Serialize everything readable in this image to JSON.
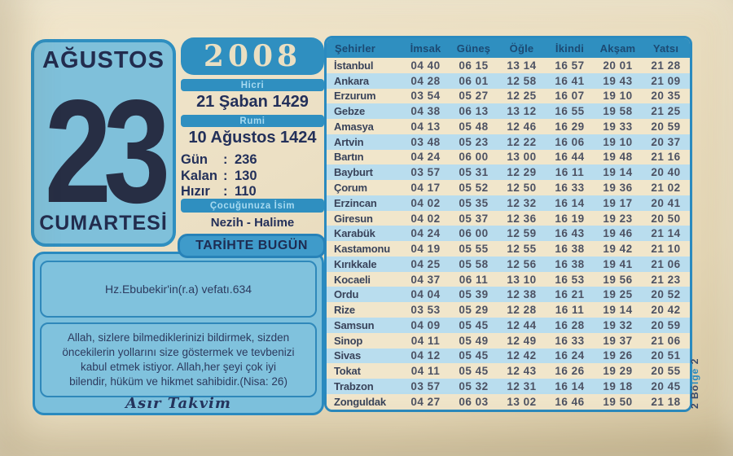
{
  "calendar": {
    "month": "AĞUSTOS",
    "day": "23",
    "weekday": "CUMARTESİ",
    "year": "2008",
    "hicri_label": "Hicri",
    "hicri_date": "21 Şaban 1429",
    "rumi_label": "Rumi",
    "rumi_date": "10 Ağustos 1424",
    "stats": [
      {
        "label": "Gün",
        "sep": ":",
        "value": "236"
      },
      {
        "label": "Kalan",
        "sep": ":",
        "value": "130"
      },
      {
        "label": "Hızır",
        "sep": ":",
        "value": "110"
      }
    ],
    "name_label": "Çocuğunuza İsim",
    "name_value": "Nezih - Halime",
    "history_title": "TARİHTE BUGÜN"
  },
  "history": {
    "event": "Hz.Ebubekir'in(r.a) vefatı.634",
    "quote_lines": [
      "Allah, sizlere bilmediklerinizi bildirmek, sizden",
      "öncekilerin yollarını size göstermek ve tevbenizi",
      "kabul etmek istiyor. Allah,her şeyi çok iyi",
      "bilendir, hüküm ve hikmet sahibidir.(Nisa: 26)"
    ],
    "signature": "Asır Takvim"
  },
  "prayer_table": {
    "columns": [
      "Şehirler",
      "İmsak",
      "Güneş",
      "Öğle",
      "İkindi",
      "Akşam",
      "Yatsı"
    ],
    "rows": [
      [
        "İstanbul",
        "04 40",
        "06 15",
        "13 14",
        "16 57",
        "20 01",
        "21 28"
      ],
      [
        "Ankara",
        "04 28",
        "06 01",
        "12 58",
        "16 41",
        "19 43",
        "21 09"
      ],
      [
        "Erzurum",
        "03 54",
        "05 27",
        "12 25",
        "16 07",
        "19 10",
        "20 35"
      ],
      [
        "Gebze",
        "04 38",
        "06 13",
        "13 12",
        "16 55",
        "19 58",
        "21 25"
      ],
      [
        "Amasya",
        "04 13",
        "05 48",
        "12 46",
        "16 29",
        "19 33",
        "20 59"
      ],
      [
        "Artvin",
        "03 48",
        "05 23",
        "12 22",
        "16 06",
        "19 10",
        "20 37"
      ],
      [
        "Bartın",
        "04 24",
        "06 00",
        "13 00",
        "16 44",
        "19 48",
        "21 16"
      ],
      [
        "Bayburt",
        "03 57",
        "05 31",
        "12 29",
        "16 11",
        "19 14",
        "20 40"
      ],
      [
        "Çorum",
        "04 17",
        "05 52",
        "12 50",
        "16 33",
        "19 36",
        "21 02"
      ],
      [
        "Erzincan",
        "04 02",
        "05 35",
        "12 32",
        "16 14",
        "19 17",
        "20 41"
      ],
      [
        "Giresun",
        "04 02",
        "05 37",
        "12 36",
        "16 19",
        "19 23",
        "20 50"
      ],
      [
        "Karabük",
        "04 24",
        "06 00",
        "12 59",
        "16 43",
        "19 46",
        "21 14"
      ],
      [
        "Kastamonu",
        "04 19",
        "05 55",
        "12 55",
        "16 38",
        "19 42",
        "21 10"
      ],
      [
        "Kırıkkale",
        "04 25",
        "05 58",
        "12 56",
        "16 38",
        "19 41",
        "21 06"
      ],
      [
        "Kocaeli",
        "04 37",
        "06 11",
        "13 10",
        "16 53",
        "19 56",
        "21 23"
      ],
      [
        "Ordu",
        "04 04",
        "05 39",
        "12 38",
        "16 21",
        "19 25",
        "20 52"
      ],
      [
        "Rize",
        "03 53",
        "05 29",
        "12 28",
        "16 11",
        "19 14",
        "20 42"
      ],
      [
        "Samsun",
        "04 09",
        "05 45",
        "12 44",
        "16 28",
        "19 32",
        "20 59"
      ],
      [
        "Sinop",
        "04 11",
        "05 49",
        "12 49",
        "16 33",
        "19 37",
        "21 06"
      ],
      [
        "Sivas",
        "04 12",
        "05 45",
        "12 42",
        "16 24",
        "19 26",
        "20 51"
      ],
      [
        "Tokat",
        "04 11",
        "05 45",
        "12 43",
        "16 26",
        "19 29",
        "20 55"
      ],
      [
        "Trabzon",
        "03 57",
        "05 32",
        "12 31",
        "16 14",
        "19 18",
        "20 45"
      ],
      [
        "Zonguldak",
        "04 27",
        "06 03",
        "13 02",
        "16 46",
        "19 50",
        "21 18"
      ]
    ]
  },
  "side_note": {
    "prefix": "2 Bö",
    "highlight": "lge",
    "suffix": " 2"
  },
  "colors": {
    "accent_blue": "#2f8fc0",
    "panel_blue": "#7fc0da",
    "stripe_blue": "#b9ddee",
    "paper_cream": "#ebdfc3",
    "ink_navy": "#23305a"
  }
}
